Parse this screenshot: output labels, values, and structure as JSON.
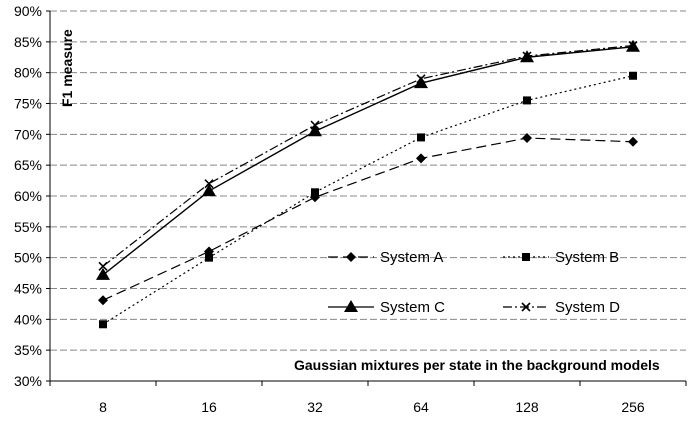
{
  "chart_data": {
    "type": "line",
    "title": "",
    "xlabel": "Gaussian mixtures per state in the background models",
    "ylabel": "F1 measure",
    "categories": [
      "8",
      "16",
      "32",
      "64",
      "128",
      "256"
    ],
    "ylim": [
      0.3,
      0.9
    ],
    "ytick_step": 0.05,
    "yticks": [
      "30%",
      "35%",
      "40%",
      "45%",
      "50%",
      "55%",
      "60%",
      "65%",
      "70%",
      "75%",
      "80%",
      "85%",
      "90%"
    ],
    "grid": "horizontal dashed",
    "legend_position": "lower-right, inside plot",
    "series": [
      {
        "name": "System A",
        "marker": "diamond",
        "dash": "dash",
        "values": [
          0.431,
          0.51,
          0.598,
          0.661,
          0.694,
          0.688
        ]
      },
      {
        "name": "System B",
        "marker": "square",
        "dash": "dot",
        "values": [
          0.392,
          0.5,
          0.606,
          0.695,
          0.755,
          0.795
        ]
      },
      {
        "name": "System C",
        "marker": "triangle",
        "dash": "solid",
        "values": [
          0.472,
          0.608,
          0.705,
          0.783,
          0.825,
          0.842
        ]
      },
      {
        "name": "System D",
        "marker": "x",
        "dash": "dashdot",
        "values": [
          0.486,
          0.62,
          0.715,
          0.79,
          0.827,
          0.844
        ]
      }
    ]
  }
}
